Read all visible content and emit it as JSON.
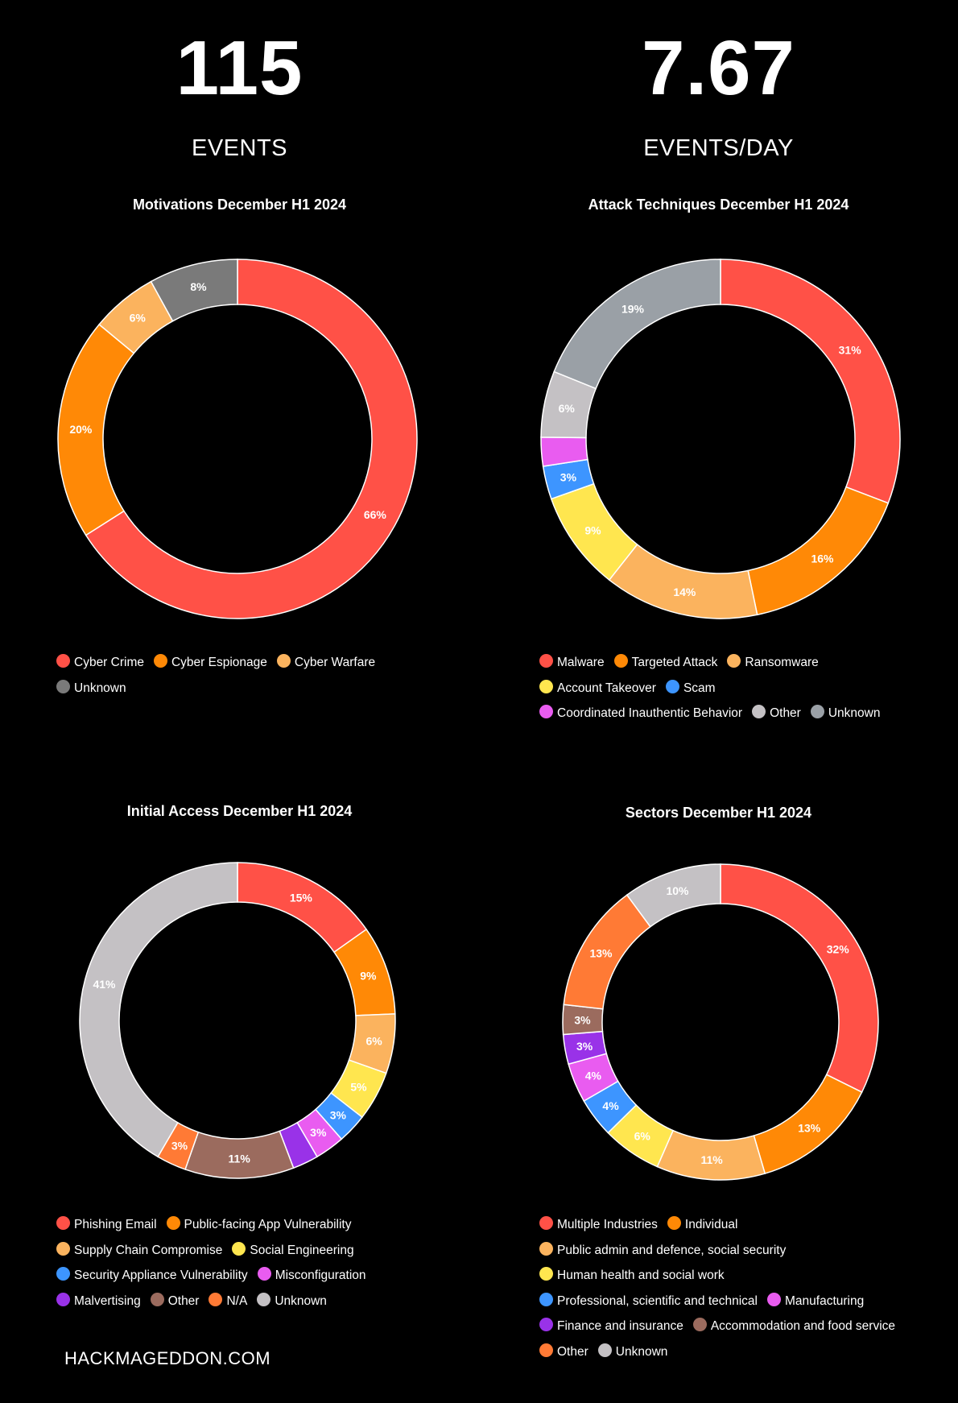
{
  "stats": {
    "events_value": "115",
    "events_label": "EVENTS",
    "per_day_value": "7.67",
    "per_day_label": "EVENTS/DAY"
  },
  "footer": "HACKMAGEDDON.COM",
  "chart_data": [
    {
      "type": "pie",
      "style": "donut",
      "title": "Motivations December H1 2024",
      "series": [
        {
          "name": "Cyber Crime",
          "value": 66,
          "label": "66%",
          "color": "#ff5147"
        },
        {
          "name": "Cyber Espionage",
          "value": 20,
          "label": "20%",
          "color": "#ff8906"
        },
        {
          "name": "Cyber Warfare",
          "value": 6,
          "label": "6%",
          "color": "#fbb35e"
        },
        {
          "name": "Unknown",
          "value": 8,
          "label": "8%",
          "color": "#7a7a7a"
        }
      ],
      "legend": [
        [
          "Cyber Crime",
          "Cyber Espionage",
          "Cyber Warfare"
        ],
        [
          "Unknown"
        ]
      ]
    },
    {
      "type": "pie",
      "style": "donut",
      "title": "Attack Techniques December H1 2024",
      "series": [
        {
          "name": "Malware",
          "value": 31,
          "label": "31%",
          "color": "#ff5147"
        },
        {
          "name": "Targeted Attack",
          "value": 16,
          "label": "16%",
          "color": "#ff8906"
        },
        {
          "name": "Ransomware",
          "value": 14,
          "label": "14%",
          "color": "#fbb35e"
        },
        {
          "name": "Account Takeover",
          "value": 9,
          "label": "9%",
          "color": "#ffe64f"
        },
        {
          "name": "Scam",
          "value": 3,
          "label": "3%",
          "color": "#3d95ff"
        },
        {
          "name": "Coordinated Inauthentic Behavior",
          "value": 2.6,
          "label": "",
          "color": "#e95cf0"
        },
        {
          "name": "Other",
          "value": 6,
          "label": "6%",
          "color": "#c4c1c4"
        },
        {
          "name": "Unknown",
          "value": 19,
          "label": "19%",
          "color": "#9aa0a6"
        }
      ],
      "legend": [
        [
          "Malware",
          "Targeted Attack",
          "Ransomware"
        ],
        [
          "Account Takeover",
          "Scam"
        ],
        [
          "Coordinated Inauthentic Behavior",
          "Other",
          "Unknown"
        ]
      ]
    },
    {
      "type": "pie",
      "style": "donut",
      "title": "Initial Access December H1 2024",
      "series": [
        {
          "name": "Phishing Email",
          "value": 15,
          "label": "15%",
          "color": "#ff5147"
        },
        {
          "name": "Public-facing App Vulnerability",
          "value": 9,
          "label": "9%",
          "color": "#ff8906"
        },
        {
          "name": "Supply Chain Compromise",
          "value": 6,
          "label": "6%",
          "color": "#fbb35e"
        },
        {
          "name": "Social Engineering",
          "value": 5,
          "label": "5%",
          "color": "#ffe64f"
        },
        {
          "name": "Security Appliance Vulnerability",
          "value": 3,
          "label": "3%",
          "color": "#3d95ff"
        },
        {
          "name": "Misconfiguration",
          "value": 3,
          "label": "3%",
          "color": "#e95cf0"
        },
        {
          "name": "Malvertising",
          "value": 2.6,
          "label": "",
          "color": "#9932e8"
        },
        {
          "name": "Other",
          "value": 11,
          "label": "11%",
          "color": "#9b6b5e"
        },
        {
          "name": "N/A",
          "value": 3,
          "label": "3%",
          "color": "#ff7a35"
        },
        {
          "name": "Unknown",
          "value": 41,
          "label": "41%",
          "color": "#c4c1c4"
        }
      ],
      "legend": [
        [
          "Phishing Email",
          "Public-facing App Vulnerability"
        ],
        [
          "Supply Chain Compromise",
          "Social Engineering"
        ],
        [
          "Security Appliance Vulnerability",
          "Misconfiguration"
        ],
        [
          "Malvertising",
          "Other",
          "N/A",
          "Unknown"
        ]
      ]
    },
    {
      "type": "pie",
      "style": "donut",
      "title": "Sectors December H1 2024",
      "series": [
        {
          "name": "Multiple Industries",
          "value": 32,
          "label": "32%",
          "color": "#ff5147"
        },
        {
          "name": "Individual",
          "value": 13,
          "label": "13%",
          "color": "#ff8906"
        },
        {
          "name": "Public admin and defence, social security",
          "value": 11,
          "label": "11%",
          "color": "#fbb35e"
        },
        {
          "name": "Human health and social work",
          "value": 6,
          "label": "6%",
          "color": "#ffe64f"
        },
        {
          "name": "Professional, scientific and technical",
          "value": 4,
          "label": "4%",
          "color": "#3d95ff"
        },
        {
          "name": "Manufacturing",
          "value": 4,
          "label": "4%",
          "color": "#e95cf0"
        },
        {
          "name": "Finance and insurance",
          "value": 3,
          "label": "3%",
          "color": "#9932e8"
        },
        {
          "name": "Accommodation and food service",
          "value": 3,
          "label": "3%",
          "color": "#9b6b5e"
        },
        {
          "name": "Other",
          "value": 13,
          "label": "13%",
          "color": "#ff7a35"
        },
        {
          "name": "Unknown",
          "value": 10,
          "label": "10%",
          "color": "#c4c1c4"
        }
      ],
      "legend": [
        [
          "Multiple Industries",
          "Individual"
        ],
        [
          "Public admin and defence, social security"
        ],
        [
          "Human health and social work"
        ],
        [
          "Professional, scientific and technical",
          "Manufacturing"
        ],
        [
          "Finance and insurance",
          "Accommodation and food service"
        ],
        [
          "Other",
          "Unknown"
        ]
      ]
    }
  ]
}
